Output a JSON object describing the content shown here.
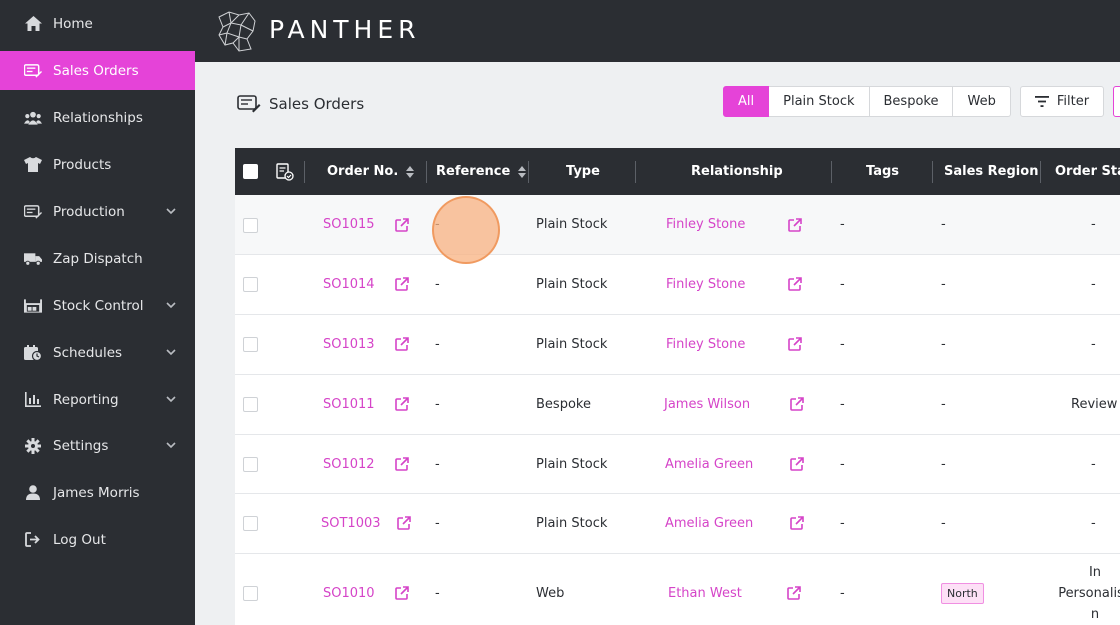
{
  "sidebar": {
    "items": [
      {
        "label": "Home",
        "icon": "home-icon"
      },
      {
        "label": "Sales Orders",
        "icon": "sales-orders-icon",
        "active": true
      },
      {
        "label": "Relationships",
        "icon": "people-icon"
      },
      {
        "label": "Products",
        "icon": "tshirt-icon"
      },
      {
        "label": "Production",
        "icon": "production-icon",
        "expandable": true
      },
      {
        "label": "Zap Dispatch",
        "icon": "truck-icon"
      },
      {
        "label": "Stock Control",
        "icon": "warehouse-icon",
        "expandable": true
      },
      {
        "label": "Schedules",
        "icon": "calendar-icon",
        "expandable": true
      },
      {
        "label": "Reporting",
        "icon": "chart-icon",
        "expandable": true
      },
      {
        "label": "Settings",
        "icon": "gear-icon",
        "expandable": true
      },
      {
        "label": "James Morris",
        "icon": "user-icon"
      },
      {
        "label": "Log Out",
        "icon": "logout-icon"
      }
    ]
  },
  "header": {
    "brand": "PANTHER"
  },
  "page": {
    "title": "Sales Orders"
  },
  "filters": {
    "segments": [
      "All",
      "Plain Stock",
      "Bespoke",
      "Web"
    ],
    "active": "All",
    "filter_label": "Filter"
  },
  "table": {
    "columns": [
      "Order No.",
      "Reference",
      "Type",
      "Relationship",
      "Tags",
      "Sales Region",
      "Order Stage"
    ],
    "rows": [
      {
        "order": "SO1015",
        "reference": "-",
        "type": "Plain Stock",
        "relationship": "Finley Stone",
        "tags": "-",
        "region": "-",
        "stage": "-"
      },
      {
        "order": "SO1014",
        "reference": "-",
        "type": "Plain Stock",
        "relationship": "Finley Stone",
        "tags": "-",
        "region": "-",
        "stage": "-"
      },
      {
        "order": "SO1013",
        "reference": "-",
        "type": "Plain Stock",
        "relationship": "Finley Stone",
        "tags": "-",
        "region": "-",
        "stage": "-"
      },
      {
        "order": "SO1011",
        "reference": "-",
        "type": "Bespoke",
        "relationship": "James Wilson",
        "tags": "-",
        "region": "-",
        "stage": "Review"
      },
      {
        "order": "SO1012",
        "reference": "-",
        "type": "Plain Stock",
        "relationship": "Amelia Green",
        "tags": "-",
        "region": "-",
        "stage": "-"
      },
      {
        "order": "SOT1003",
        "reference": "-",
        "type": "Plain Stock",
        "relationship": "Amelia Green",
        "tags": "-",
        "region": "-",
        "stage": "-"
      },
      {
        "order": "SO1010",
        "reference": "-",
        "type": "Web",
        "relationship": "Ethan West",
        "tags": "-",
        "region": "North",
        "stage_lines": [
          "In",
          "Personalisa",
          "n"
        ]
      }
    ]
  },
  "colors": {
    "accent": "#e543d8",
    "sidebar": "#2b2e33",
    "link": "#d544c8"
  }
}
